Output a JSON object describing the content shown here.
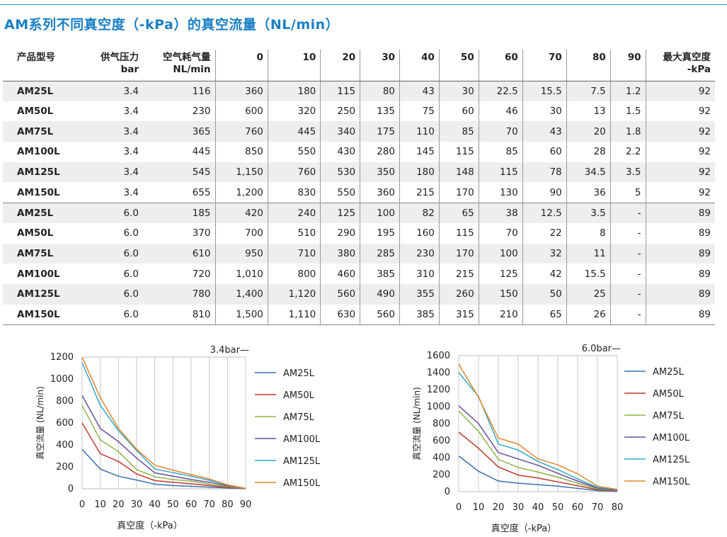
{
  "title": "AM系列不同真空度（-kPa）的真空流量（NL/min）",
  "table": {
    "headers": {
      "model": "产品型号",
      "pressure": [
        "供气压力",
        "bar"
      ],
      "consumption": [
        "空气耗气量",
        "NL/min"
      ],
      "vacuum_levels": [
        "0",
        "10",
        "20",
        "30",
        "40",
        "50",
        "60",
        "70",
        "80",
        "90"
      ],
      "max_vacuum": [
        "最大真空度",
        "-kPa"
      ]
    },
    "rows": [
      {
        "model": "AM25L",
        "pressure": "3.4",
        "consumption": "116",
        "flows": [
          "360",
          "180",
          "115",
          "80",
          "43",
          "30",
          "22.5",
          "15.5",
          "7.5",
          "1.2"
        ],
        "max": "92"
      },
      {
        "model": "AM50L",
        "pressure": "3.4",
        "consumption": "230",
        "flows": [
          "600",
          "320",
          "250",
          "135",
          "75",
          "60",
          "46",
          "30",
          "13",
          "1.5"
        ],
        "max": "92"
      },
      {
        "model": "AM75L",
        "pressure": "3.4",
        "consumption": "365",
        "flows": [
          "760",
          "445",
          "340",
          "175",
          "110",
          "85",
          "70",
          "43",
          "20",
          "1.8"
        ],
        "max": "92"
      },
      {
        "model": "AM100L",
        "pressure": "3.4",
        "consumption": "445",
        "flows": [
          "850",
          "550",
          "430",
          "280",
          "145",
          "115",
          "85",
          "60",
          "28",
          "2.2"
        ],
        "max": "92"
      },
      {
        "model": "AM125L",
        "pressure": "3.4",
        "consumption": "545",
        "flows": [
          "1,150",
          "760",
          "530",
          "350",
          "180",
          "148",
          "115",
          "78",
          "34.5",
          "3.5"
        ],
        "max": "92"
      },
      {
        "model": "AM150L",
        "pressure": "3.4",
        "consumption": "655",
        "flows": [
          "1,200",
          "830",
          "550",
          "360",
          "215",
          "170",
          "130",
          "90",
          "36",
          "5"
        ],
        "max": "92"
      },
      {
        "model": "AM25L",
        "pressure": "6.0",
        "consumption": "185",
        "flows": [
          "420",
          "240",
          "125",
          "100",
          "82",
          "65",
          "38",
          "12.5",
          "3.5",
          "-"
        ],
        "max": "89"
      },
      {
        "model": "AM50L",
        "pressure": "6.0",
        "consumption": "370",
        "flows": [
          "700",
          "510",
          "290",
          "195",
          "160",
          "115",
          "70",
          "22",
          "8",
          "-"
        ],
        "max": "89"
      },
      {
        "model": "AM75L",
        "pressure": "6.0",
        "consumption": "610",
        "flows": [
          "950",
          "710",
          "380",
          "285",
          "230",
          "170",
          "100",
          "32",
          "11",
          "-"
        ],
        "max": "89"
      },
      {
        "model": "AM100L",
        "pressure": "6.0",
        "consumption": "720",
        "flows": [
          "1,010",
          "800",
          "460",
          "385",
          "310",
          "215",
          "125",
          "42",
          "15.5",
          "-"
        ],
        "max": "89"
      },
      {
        "model": "AM125L",
        "pressure": "6.0",
        "consumption": "780",
        "flows": [
          "1,400",
          "1,120",
          "560",
          "490",
          "355",
          "260",
          "150",
          "50",
          "25",
          "-"
        ],
        "max": "89"
      },
      {
        "model": "AM150L",
        "pressure": "6.0",
        "consumption": "810",
        "flows": [
          "1,500",
          "1,110",
          "630",
          "560",
          "385",
          "315",
          "210",
          "65",
          "26",
          "-"
        ],
        "max": "89"
      }
    ]
  },
  "chart_data": [
    {
      "type": "line",
      "title": "3.4bar—",
      "xlabel": "真空度（-kPa）",
      "ylabel": "真空流量 (NL/min)",
      "xlim": [
        0,
        90
      ],
      "ylim": [
        0,
        1200
      ],
      "x_ticks": [
        "0",
        "10",
        "20",
        "30",
        "40",
        "50",
        "60",
        "70",
        "80",
        "90"
      ],
      "y_ticks": [
        "0",
        "200",
        "400",
        "600",
        "800",
        "1000",
        "1200"
      ],
      "x": [
        0,
        10,
        20,
        30,
        40,
        50,
        60,
        70,
        80,
        90
      ],
      "legend_position": "right",
      "series": [
        {
          "name": "AM25L",
          "color": "#3a6fb0",
          "values": [
            360,
            180,
            115,
            80,
            43,
            30,
            22.5,
            15.5,
            7.5,
            1.2
          ]
        },
        {
          "name": "AM50L",
          "color": "#c0392b",
          "values": [
            600,
            320,
            250,
            135,
            75,
            60,
            46,
            30,
            13,
            1.5
          ]
        },
        {
          "name": "AM75L",
          "color": "#8db34a",
          "values": [
            760,
            445,
            340,
            175,
            110,
            85,
            70,
            43,
            20,
            1.8
          ]
        },
        {
          "name": "AM100L",
          "color": "#6a4c9c",
          "values": [
            850,
            550,
            430,
            280,
            145,
            115,
            85,
            60,
            28,
            2.2
          ]
        },
        {
          "name": "AM125L",
          "color": "#2fa8c8",
          "values": [
            1150,
            760,
            530,
            350,
            180,
            148,
            115,
            78,
            34.5,
            3.5
          ]
        },
        {
          "name": "AM150L",
          "color": "#e8832a",
          "values": [
            1200,
            830,
            550,
            360,
            215,
            170,
            130,
            90,
            36,
            5
          ]
        }
      ]
    },
    {
      "type": "line",
      "title": "6.0bar—",
      "xlabel": "真空度（-kPa）",
      "ylabel": "真空流量 (NL/min)",
      "xlim": [
        0,
        80
      ],
      "ylim": [
        0,
        1600
      ],
      "x_ticks": [
        "0",
        "10",
        "20",
        "30",
        "40",
        "50",
        "60",
        "70",
        "80"
      ],
      "y_ticks": [
        "0",
        "200",
        "400",
        "600",
        "800",
        "1000",
        "1200",
        "1400",
        "1600"
      ],
      "x": [
        0,
        10,
        20,
        30,
        40,
        50,
        60,
        70,
        80
      ],
      "legend_position": "right",
      "series": [
        {
          "name": "AM25L",
          "color": "#3a6fb0",
          "values": [
            420,
            240,
            125,
            100,
            82,
            65,
            38,
            12.5,
            3.5
          ]
        },
        {
          "name": "AM50L",
          "color": "#c0392b",
          "values": [
            700,
            510,
            290,
            195,
            160,
            115,
            70,
            22,
            8
          ]
        },
        {
          "name": "AM75L",
          "color": "#8db34a",
          "values": [
            950,
            710,
            380,
            285,
            230,
            170,
            100,
            32,
            11
          ]
        },
        {
          "name": "AM100L",
          "color": "#6a4c9c",
          "values": [
            1010,
            800,
            460,
            385,
            310,
            215,
            125,
            42,
            15.5
          ]
        },
        {
          "name": "AM125L",
          "color": "#2fa8c8",
          "values": [
            1400,
            1120,
            560,
            490,
            355,
            260,
            150,
            50,
            25
          ]
        },
        {
          "name": "AM150L",
          "color": "#e8832a",
          "values": [
            1500,
            1110,
            630,
            560,
            385,
            315,
            210,
            65,
            26
          ]
        }
      ]
    }
  ]
}
